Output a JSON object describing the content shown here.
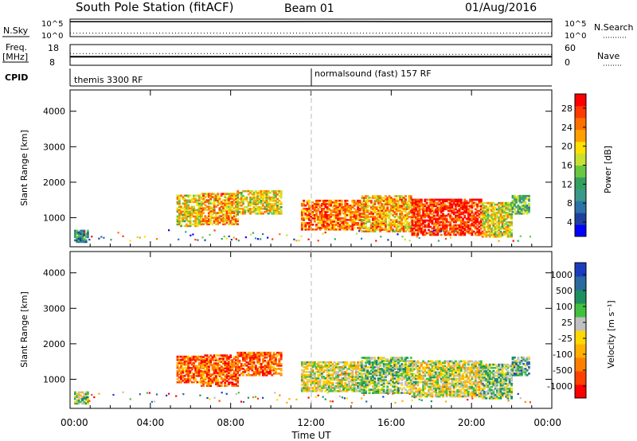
{
  "header": {
    "station": "South Pole Station (fitACF)",
    "beam": "Beam 01",
    "date": "01/Aug/2016"
  },
  "chart_data": [
    {
      "type": "line",
      "name": "noise-panel",
      "left_label": "N.Sky",
      "right_label": "N.Search",
      "left_ticks": [
        "10^5",
        "10^0"
      ],
      "right_ticks": [
        "10^5",
        "10^0"
      ],
      "series": [
        {
          "name": "N.Sky",
          "style": "solid",
          "values_log10": [
            5.0,
            5.0,
            5.0,
            5.0,
            5.1,
            5.0,
            5.0,
            5.0
          ]
        },
        {
          "name": "N.Search",
          "style": "dotted",
          "values_log10": [
            0.3,
            0.3,
            0.3,
            0.3,
            0.3,
            0.3,
            0.3,
            0.3
          ]
        }
      ]
    },
    {
      "type": "line",
      "name": "freq-panel",
      "left_label": "Freq.",
      "left_unit": "[MHz]",
      "right_label": "Nave",
      "left_ticks": [
        "18",
        "8"
      ],
      "right_ticks": [
        "60",
        "0"
      ],
      "ylim_freq": [
        8,
        18
      ],
      "ylim_nave": [
        0,
        60
      ],
      "series": [
        {
          "name": "Freq",
          "style": "solid",
          "values": [
            12,
            12,
            12,
            12,
            12,
            12,
            12,
            12
          ]
        },
        {
          "name": "Nave",
          "style": "dotted",
          "values": [
            35,
            35,
            35,
            35,
            32,
            32,
            32,
            32
          ]
        }
      ]
    },
    {
      "type": "table",
      "name": "cpid-panel",
      "label": "CPID",
      "segments": [
        {
          "start_hour": 0,
          "end_hour": 12,
          "text": "themis 3300 RF"
        },
        {
          "start_hour": 12,
          "end_hour": 24,
          "text": "normalsound (fast) 157 RF"
        }
      ]
    },
    {
      "type": "heatmap",
      "name": "power-panel",
      "ylabel": "Slant Range [km]",
      "ylim": [
        180,
        4600
      ],
      "yticks": [
        1000,
        2000,
        3000,
        4000
      ],
      "xlim_hours": [
        0,
        24
      ],
      "colorbar": {
        "label": "Power [dB]",
        "ticks": [
          "28",
          "24",
          "20",
          "16",
          "12",
          "8",
          "4"
        ],
        "colors": [
          "#0000ff",
          "#1f3fa0",
          "#2c72a8",
          "#3a9a8a",
          "#34a060",
          "#6ac840",
          "#c8e030",
          "#ffe000",
          "#ffa000",
          "#ff7000",
          "#ff3a00",
          "#ff0000"
        ]
      },
      "blobs": [
        {
          "t0": 0.2,
          "t1": 0.9,
          "r0": 300,
          "r1": 650,
          "level": 0.3
        },
        {
          "t0": 5.3,
          "t1": 6.5,
          "r0": 750,
          "r1": 1650,
          "level": 0.6
        },
        {
          "t0": 6.5,
          "t1": 8.3,
          "r0": 800,
          "r1": 1700,
          "level": 0.7
        },
        {
          "t0": 8.3,
          "t1": 10.5,
          "r0": 1100,
          "r1": 1750,
          "level": 0.6
        },
        {
          "t0": 11.5,
          "t1": 14.5,
          "r0": 650,
          "r1": 1500,
          "level": 0.8
        },
        {
          "t0": 14.5,
          "t1": 17.0,
          "r0": 600,
          "r1": 1600,
          "level": 0.7
        },
        {
          "t0": 17.0,
          "t1": 20.5,
          "r0": 500,
          "r1": 1500,
          "level": 0.9
        },
        {
          "t0": 20.5,
          "t1": 22.0,
          "r0": 450,
          "r1": 1400,
          "level": 0.6
        },
        {
          "t0": 22.0,
          "t1": 22.9,
          "r0": 1100,
          "r1": 1600,
          "level": 0.4
        }
      ]
    },
    {
      "type": "heatmap",
      "name": "velocity-panel",
      "ylabel": "Slant Range [km]",
      "ylim": [
        180,
        4600
      ],
      "yticks": [
        1000,
        2000,
        3000,
        4000
      ],
      "xlim_hours": [
        0,
        24
      ],
      "xticks": [
        "00:00",
        "04:00",
        "08:00",
        "12:00",
        "16:00",
        "20:00",
        "00:00"
      ],
      "xlabel": "Time UT",
      "colorbar": {
        "label": "Velocity [m s⁻¹]",
        "ticks": [
          "1000",
          "500",
          "100",
          "25",
          "-25",
          "-100",
          "-500",
          "-1000"
        ],
        "colors": [
          "#ff0000",
          "#ff4000",
          "#ff8000",
          "#ffb000",
          "#ffd800",
          "#c0c0c0",
          "#40c040",
          "#1c9060",
          "#2a6aa0",
          "#1c3cc0"
        ]
      },
      "blobs": [
        {
          "t0": 0.2,
          "t1": 0.9,
          "r0": 300,
          "r1": 650,
          "level": 0.6
        },
        {
          "t0": 5.3,
          "t1": 6.5,
          "r0": 900,
          "r1": 1650,
          "level": 0.2
        },
        {
          "t0": 6.5,
          "t1": 8.3,
          "r0": 800,
          "r1": 1700,
          "level": 0.2
        },
        {
          "t0": 8.3,
          "t1": 10.5,
          "r0": 1100,
          "r1": 1750,
          "level": 0.2
        },
        {
          "t0": 11.5,
          "t1": 14.5,
          "r0": 650,
          "r1": 1500,
          "level": 0.5
        },
        {
          "t0": 14.5,
          "t1": 17.0,
          "r0": 600,
          "r1": 1600,
          "level": 0.6
        },
        {
          "t0": 17.0,
          "t1": 20.5,
          "r0": 500,
          "r1": 1500,
          "level": 0.5
        },
        {
          "t0": 20.5,
          "t1": 22.0,
          "r0": 450,
          "r1": 1400,
          "level": 0.6
        },
        {
          "t0": 22.0,
          "t1": 22.9,
          "r0": 1100,
          "r1": 1600,
          "level": 0.7
        }
      ]
    }
  ]
}
